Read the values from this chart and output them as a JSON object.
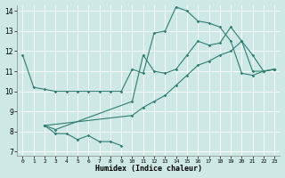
{
  "xlabel": "Humidex (Indice chaleur)",
  "bg_color": "#cde8e5",
  "line_color": "#2e7d72",
  "xlim": [
    -0.5,
    23.5
  ],
  "ylim": [
    6.8,
    14.3
  ],
  "xticks": [
    0,
    1,
    2,
    3,
    4,
    5,
    6,
    7,
    8,
    9,
    10,
    11,
    12,
    13,
    14,
    15,
    16,
    17,
    18,
    19,
    20,
    21,
    22,
    23
  ],
  "yticks": [
    7,
    8,
    9,
    10,
    11,
    12,
    13,
    14
  ],
  "line1": {
    "x": [
      0,
      1,
      2,
      3,
      4,
      5,
      6,
      7,
      8,
      9,
      10,
      11,
      12,
      13,
      14,
      15,
      16,
      17,
      18,
      19,
      20,
      21,
      22,
      23
    ],
    "y": [
      11.8,
      10.2,
      10.1,
      10.0,
      10.0,
      10.0,
      10.0,
      10.0,
      10.0,
      10.0,
      11.1,
      10.9,
      12.9,
      13.0,
      14.2,
      14.0,
      13.5,
      13.4,
      13.2,
      12.5,
      10.9,
      10.8,
      11.0,
      11.1
    ]
  },
  "line2": {
    "x": [
      2,
      3,
      10,
      11,
      12,
      13,
      14,
      15,
      16,
      17,
      18,
      19,
      20,
      21,
      22,
      23
    ],
    "y": [
      8.3,
      8.1,
      9.5,
      11.8,
      11.0,
      10.9,
      11.1,
      11.8,
      12.5,
      12.3,
      12.4,
      13.2,
      12.5,
      11.8,
      11.0,
      11.1
    ]
  },
  "line3": {
    "x": [
      2,
      10,
      11,
      12,
      13,
      14,
      15,
      16,
      17,
      18,
      19,
      20,
      21,
      22,
      23
    ],
    "y": [
      8.3,
      8.8,
      9.2,
      9.5,
      9.8,
      10.3,
      10.8,
      11.3,
      11.5,
      11.8,
      12.0,
      12.5,
      11.0,
      11.0,
      11.1
    ]
  },
  "line4": {
    "x": [
      2,
      3,
      4,
      5,
      6,
      7,
      8,
      9
    ],
    "y": [
      8.3,
      7.9,
      7.9,
      7.6,
      7.8,
      7.5,
      7.5,
      7.3
    ]
  }
}
